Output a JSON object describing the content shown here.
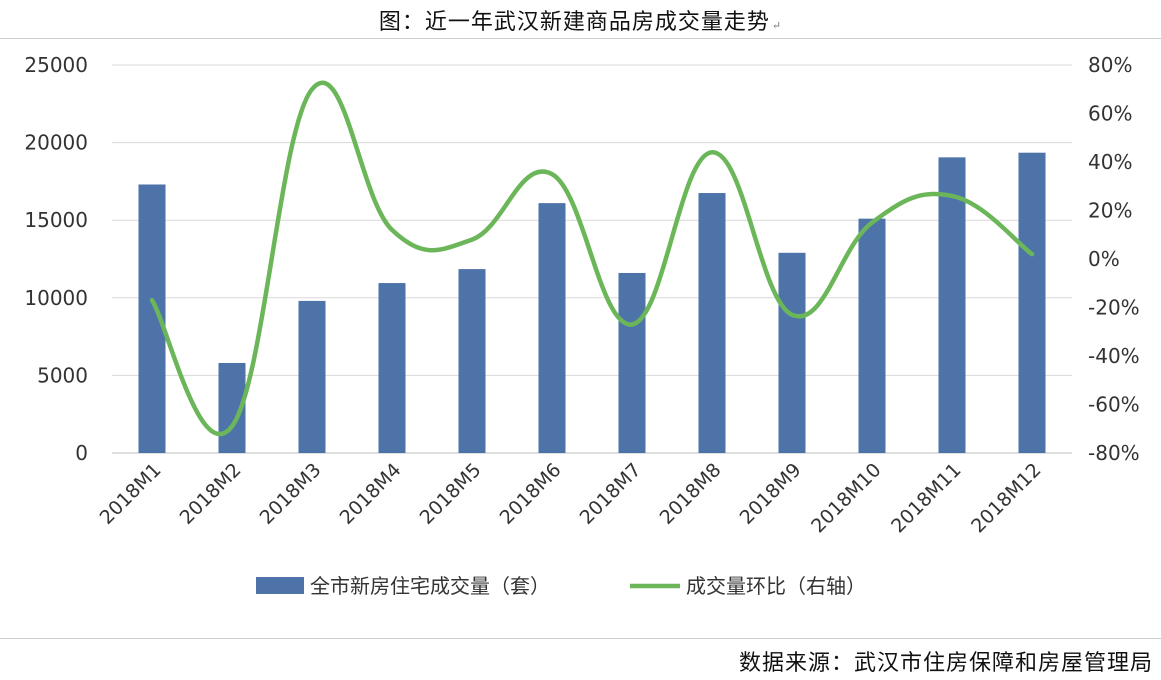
{
  "title": "图：近一年武汉新建商品房成交量走势",
  "title_mark": "↵",
  "source": "数据来源：武汉市住房保障和房屋管理局",
  "colors": {
    "bar": "#4e73a8",
    "line": "#6cb65a",
    "grid": "#d9d9d9",
    "axis": "#bfbfbf"
  },
  "chart_data": {
    "type": "bar",
    "categories": [
      "2018M1",
      "2018M2",
      "2018M3",
      "2018M4",
      "2018M5",
      "2018M6",
      "2018M7",
      "2018M8",
      "2018M9",
      "2018M10",
      "2018M11",
      "2018M12"
    ],
    "series": [
      {
        "name": "全市新房住宅成交量（套）",
        "type": "bar",
        "axis": "left",
        "values": [
          17300,
          5800,
          9800,
          10950,
          11850,
          16100,
          11600,
          16750,
          12900,
          15100,
          19050,
          19350
        ]
      },
      {
        "name": "成交量环比（右轴）",
        "type": "line",
        "axis": "right",
        "values": [
          -17,
          -69,
          70,
          12,
          8,
          35,
          -27,
          44,
          -23,
          15,
          26,
          2
        ]
      }
    ],
    "left_axis": {
      "ylim": [
        0,
        25000
      ],
      "ticks": [
        "0",
        "5000",
        "10000",
        "15000",
        "20000",
        "25000"
      ]
    },
    "right_axis": {
      "ylim": [
        -80,
        80
      ],
      "ticks": [
        "-80%",
        "-60%",
        "-40%",
        "-20%",
        "0%",
        "20%",
        "40%",
        "60%",
        "80%"
      ]
    },
    "grid": true,
    "legend_position": "bottom"
  }
}
